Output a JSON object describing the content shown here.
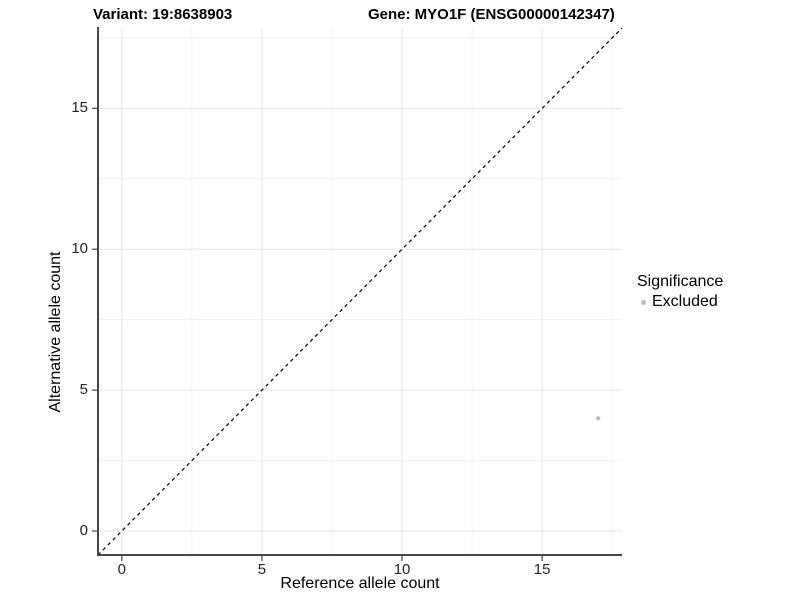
{
  "header": {
    "title_left": "Variant: 19:8638903",
    "title_right": "Gene: MYO1F (ENSG00000142347)"
  },
  "chart_data": {
    "type": "scatter",
    "title": "Variant: 19:8638903   Gene: MYO1F (ENSG00000142347)",
    "xlabel": "Reference allele count",
    "ylabel": "Alternative allele count",
    "xlim": [
      -0.85,
      17.85
    ],
    "ylim": [
      -0.85,
      17.85
    ],
    "x_ticks": [
      0,
      5,
      10,
      15
    ],
    "y_ticks": [
      0,
      5,
      10,
      15
    ],
    "x_minor_ticks": [
      2.5,
      7.5,
      12.5,
      17.5
    ],
    "y_minor_ticks": [
      2.5,
      7.5,
      12.5,
      17.5
    ],
    "grid": "major+minor",
    "reference_line": {
      "type": "abline",
      "slope": 1,
      "intercept": 0,
      "linetype": "dashed",
      "color": "#000000"
    },
    "points": [
      {
        "x": 17,
        "y": 4,
        "series": "Excluded",
        "color": "#bebebe",
        "radius": 2.2
      }
    ],
    "legend": {
      "position": "right",
      "title": "Significance",
      "entries": [
        {
          "label": "Excluded",
          "color": "#bebebe"
        }
      ]
    },
    "colors": {
      "background": "#ffffff",
      "grid_major": "#e5e5e5",
      "grid_minor": "#f1f1f1",
      "axis_line": "#474747",
      "tick_mark": "#474747",
      "tick_label": "#262626",
      "point": "#bebebe"
    }
  }
}
